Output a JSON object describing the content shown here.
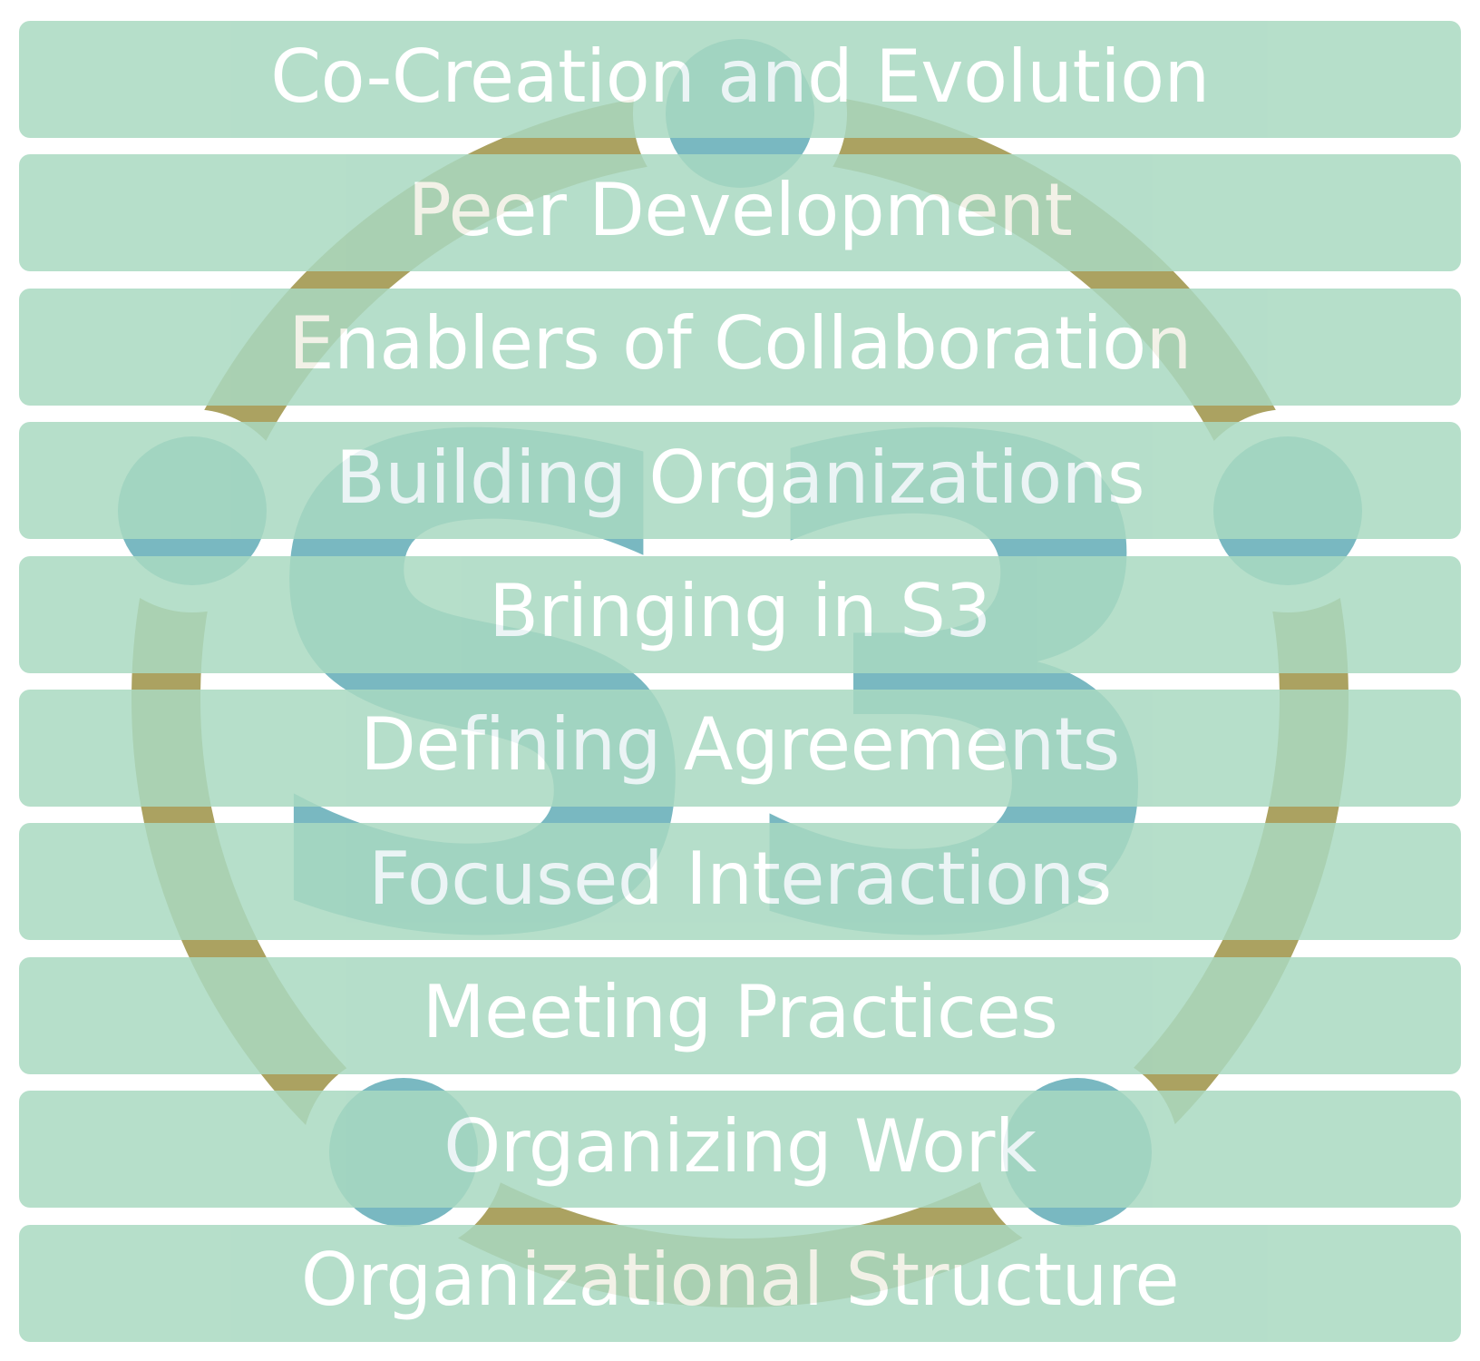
{
  "colors": {
    "band_fill": "#a9d9c1",
    "band_opacity": 0.85,
    "ring": "#aba261",
    "accent_blue": "#79b8c1",
    "text": "#ffffff"
  },
  "logo": {
    "letters": "S3",
    "icon": "s3-circle-logo"
  },
  "bands": [
    {
      "label": "Co-Creation and Evolution"
    },
    {
      "label": "Peer Development"
    },
    {
      "label": "Enablers of Collaboration"
    },
    {
      "label": "Building Organizations"
    },
    {
      "label": "Bringing in S3"
    },
    {
      "label": "Defining Agreements"
    },
    {
      "label": "Focused Interactions"
    },
    {
      "label": "Meeting Practices"
    },
    {
      "label": "Organizing Work"
    },
    {
      "label": "Organizational Structure"
    }
  ]
}
